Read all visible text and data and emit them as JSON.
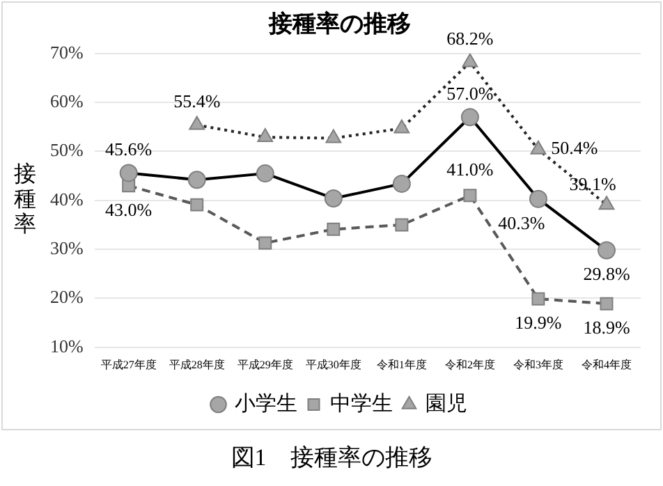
{
  "chart_data": {
    "type": "line",
    "title": "接種率の推移",
    "ylabel": "接種率",
    "categories": [
      "平成27年度",
      "平成28年度",
      "平成29年度",
      "平成30年度",
      "令和1年度",
      "令和2年度",
      "令和3年度",
      "令和4年度"
    ],
    "series": [
      {
        "name": "小学生",
        "color": "#000000",
        "marker": "circle",
        "line_style": "solid",
        "values": [
          45.6,
          44.2,
          45.5,
          40.4,
          43.4,
          57.0,
          40.3,
          29.8
        ],
        "value_labels": [
          "45.6%",
          null,
          null,
          null,
          null,
          "57.0%",
          "40.3%",
          "29.8%"
        ]
      },
      {
        "name": "中学生",
        "color": "#595959",
        "marker": "square",
        "line_style": "dashed",
        "values": [
          43.0,
          39.1,
          31.3,
          34.1,
          35.0,
          41.0,
          19.9,
          18.9
        ],
        "value_labels": [
          "43.0%",
          null,
          null,
          null,
          null,
          "41.0%",
          "19.9%",
          "18.9%"
        ]
      },
      {
        "name": "園児",
        "color": "#262626",
        "marker": "triangle",
        "line_style": "dotted",
        "values": [
          null,
          55.4,
          52.9,
          52.7,
          54.7,
          68.2,
          50.4,
          39.1
        ],
        "value_labels": [
          null,
          "55.4%",
          null,
          null,
          null,
          "68.2%",
          "50.4%",
          "39.1%"
        ]
      }
    ],
    "ylim": [
      10,
      70
    ],
    "yticks": [
      {
        "value": 10,
        "label": "10%"
      },
      {
        "value": 20,
        "label": "20%"
      },
      {
        "value": 30,
        "label": "30%"
      },
      {
        "value": 40,
        "label": "40%"
      },
      {
        "value": 50,
        "label": "50%"
      },
      {
        "value": 60,
        "label": "60%"
      },
      {
        "value": 70,
        "label": "70%"
      }
    ],
    "grid": "y",
    "legend": "bottom",
    "annotations": [
      "図1　接種率の推移"
    ]
  }
}
